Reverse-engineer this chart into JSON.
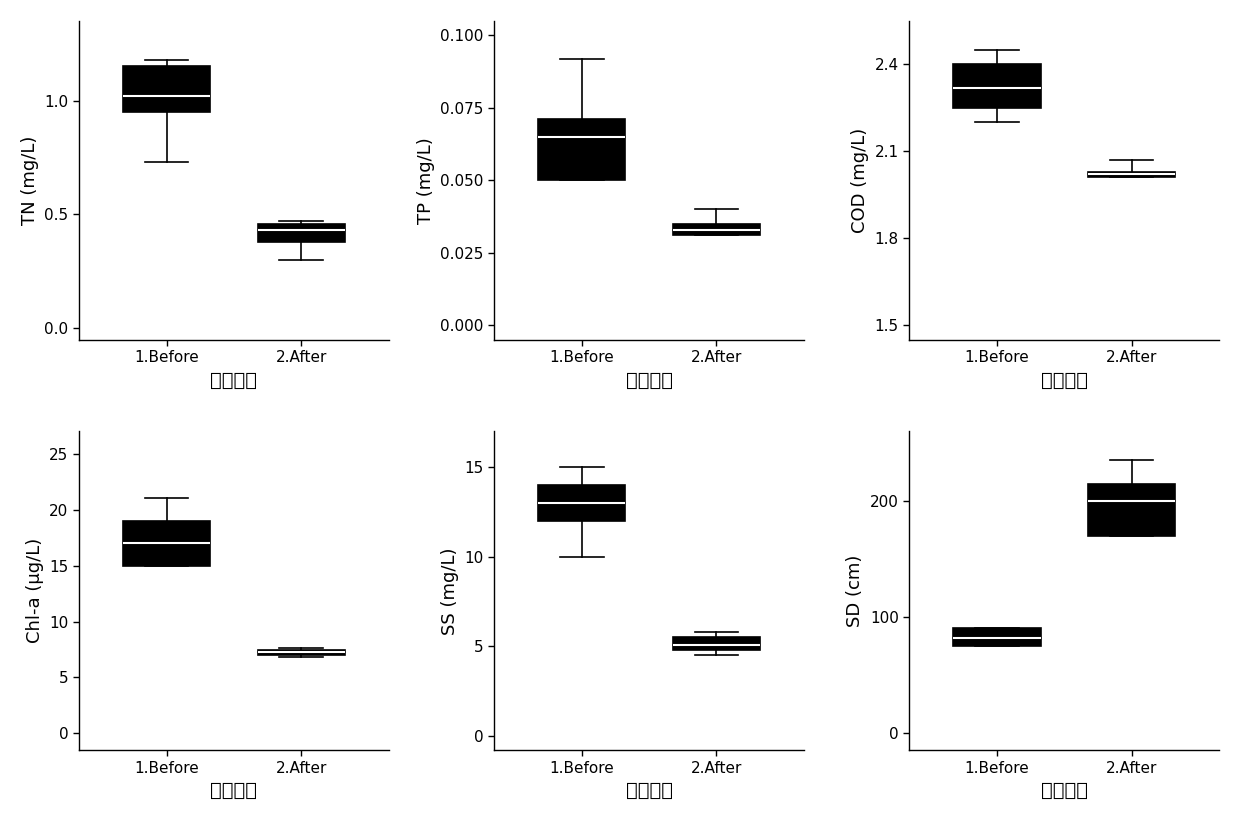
{
  "subplots": [
    {
      "ylabel": "TN (mg/L)",
      "xlabel": "清鱼前后",
      "ylim": [
        -0.05,
        1.35
      ],
      "yticks": [
        0.0,
        0.5,
        1.0
      ],
      "categories": [
        "1.Before",
        "2.After"
      ],
      "boxes": [
        {
          "q1": 0.95,
          "median": 1.02,
          "q3": 1.15,
          "whislo": 0.73,
          "whishi": 1.18
        },
        {
          "q1": 0.38,
          "median": 0.43,
          "q3": 0.46,
          "whislo": 0.3,
          "whishi": 0.47
        }
      ]
    },
    {
      "ylabel": "TP (mg/L)",
      "xlabel": "清鱼前后",
      "ylim": [
        -0.005,
        0.105
      ],
      "yticks": [
        0.0,
        0.025,
        0.05,
        0.075,
        0.1
      ],
      "categories": [
        "1.Before",
        "2.After"
      ],
      "boxes": [
        {
          "q1": 0.05,
          "median": 0.065,
          "q3": 0.071,
          "whislo": 0.05,
          "whishi": 0.092
        },
        {
          "q1": 0.031,
          "median": 0.033,
          "q3": 0.035,
          "whislo": 0.031,
          "whishi": 0.04
        }
      ]
    },
    {
      "ylabel": "COD (mg/L)",
      "xlabel": "清鱼前后",
      "ylim": [
        1.45,
        2.55
      ],
      "yticks": [
        1.5,
        1.8,
        2.1,
        2.4
      ],
      "categories": [
        "1.Before",
        "2.After"
      ],
      "boxes": [
        {
          "q1": 2.25,
          "median": 2.32,
          "q3": 2.4,
          "whislo": 2.2,
          "whishi": 2.45
        },
        {
          "q1": 2.01,
          "median": 2.02,
          "q3": 2.03,
          "whislo": 2.01,
          "whishi": 2.07
        }
      ]
    },
    {
      "ylabel": "Chl-a (μg/L)",
      "xlabel": "清鱼前后",
      "ylim": [
        -1.5,
        27
      ],
      "yticks": [
        0,
        5,
        10,
        15,
        20,
        25
      ],
      "categories": [
        "1.Before",
        "2.After"
      ],
      "boxes": [
        {
          "q1": 15.0,
          "median": 17.0,
          "q3": 19.0,
          "whislo": 15.0,
          "whishi": 21.0
        },
        {
          "q1": 7.0,
          "median": 7.3,
          "q3": 7.5,
          "whislo": 6.8,
          "whishi": 7.6
        }
      ]
    },
    {
      "ylabel": "SS (mg/L)",
      "xlabel": "清鱼前后",
      "ylim": [
        -0.8,
        17
      ],
      "yticks": [
        0,
        5,
        10,
        15
      ],
      "categories": [
        "1.Before",
        "2.After"
      ],
      "boxes": [
        {
          "q1": 12.0,
          "median": 13.0,
          "q3": 14.0,
          "whislo": 10.0,
          "whishi": 15.0
        },
        {
          "q1": 4.8,
          "median": 5.1,
          "q3": 5.5,
          "whislo": 4.5,
          "whishi": 5.8
        }
      ]
    },
    {
      "ylabel": "SD (cm)",
      "xlabel": "清鱼前后",
      "ylim": [
        -15,
        260
      ],
      "yticks": [
        0,
        100,
        200
      ],
      "categories": [
        "1.Before",
        "2.After"
      ],
      "boxes": [
        {
          "q1": 75,
          "median": 82,
          "q3": 90,
          "whislo": 75,
          "whishi": 90
        },
        {
          "q1": 170,
          "median": 200,
          "q3": 215,
          "whislo": 170,
          "whishi": 235
        }
      ]
    }
  ],
  "box_color": "#000000",
  "box_width": 0.65,
  "linewidth": 1.2,
  "whisker_linewidth": 1.2,
  "median_color": "#ffffff",
  "median_linewidth": 1.5,
  "tick_fontsize": 11,
  "label_fontsize": 13,
  "xlabel_fontsize": 14,
  "background_color": "#ffffff"
}
